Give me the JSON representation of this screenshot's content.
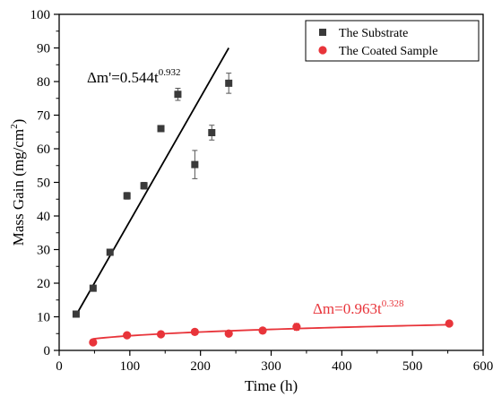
{
  "chart_data": {
    "type": "scatter",
    "xlabel": "Time (h)",
    "ylabel_main": "Mass Gain (mg/cm",
    "ylabel_sup": "2",
    "ylabel_tail": ")",
    "xlim": [
      0,
      600
    ],
    "ylim": [
      0,
      100
    ],
    "xticks": [
      0,
      100,
      200,
      300,
      400,
      500,
      600
    ],
    "yticks": [
      0,
      10,
      20,
      30,
      40,
      50,
      60,
      70,
      80,
      90,
      100
    ],
    "grid": false,
    "legend_position": "top-right",
    "series": [
      {
        "name": "The Substrate",
        "marker": "square",
        "color": "#3a3a3a",
        "points": [
          {
            "x": 24,
            "y": 10.8,
            "err": 0.5
          },
          {
            "x": 48,
            "y": 18.5,
            "err": 0.5
          },
          {
            "x": 72,
            "y": 29.2,
            "err": 0.5
          },
          {
            "x": 96,
            "y": 46.0,
            "err": 1.0
          },
          {
            "x": 120,
            "y": 49.0,
            "err": 1.0
          },
          {
            "x": 144,
            "y": 66.0,
            "err": 0.8
          },
          {
            "x": 168,
            "y": 76.2,
            "err": 1.8
          },
          {
            "x": 192,
            "y": 55.3,
            "err": 4.2
          },
          {
            "x": 216,
            "y": 64.8,
            "err": 2.2
          },
          {
            "x": 240,
            "y": 79.5,
            "err": 3.0
          }
        ],
        "fit": {
          "label_main": "Δm'=0.544t",
          "label_sup": "0.932",
          "color": "#000000",
          "x_range": [
            24,
            240
          ],
          "y_range": [
            10.5,
            90
          ]
        }
      },
      {
        "name": "The Coated Sample",
        "marker": "circle",
        "color": "#e8343a",
        "points": [
          {
            "x": 48,
            "y": 2.4,
            "err": 0.3
          },
          {
            "x": 96,
            "y": 4.5,
            "err": 0.3
          },
          {
            "x": 144,
            "y": 4.8,
            "err": 0.3
          },
          {
            "x": 192,
            "y": 5.5,
            "err": 0.6
          },
          {
            "x": 240,
            "y": 5.0,
            "err": 0.5
          },
          {
            "x": 288,
            "y": 5.9,
            "err": 0.5
          },
          {
            "x": 336,
            "y": 7.0,
            "err": 1.0
          },
          {
            "x": 552,
            "y": 8.0,
            "err": 0.3
          }
        ],
        "fit": {
          "label_main": "Δm=0.963t",
          "label_sup": "0.328",
          "color": "#e8343a",
          "coef": 0.963,
          "exp": 0.328,
          "x_range": [
            48,
            552
          ]
        }
      }
    ]
  }
}
